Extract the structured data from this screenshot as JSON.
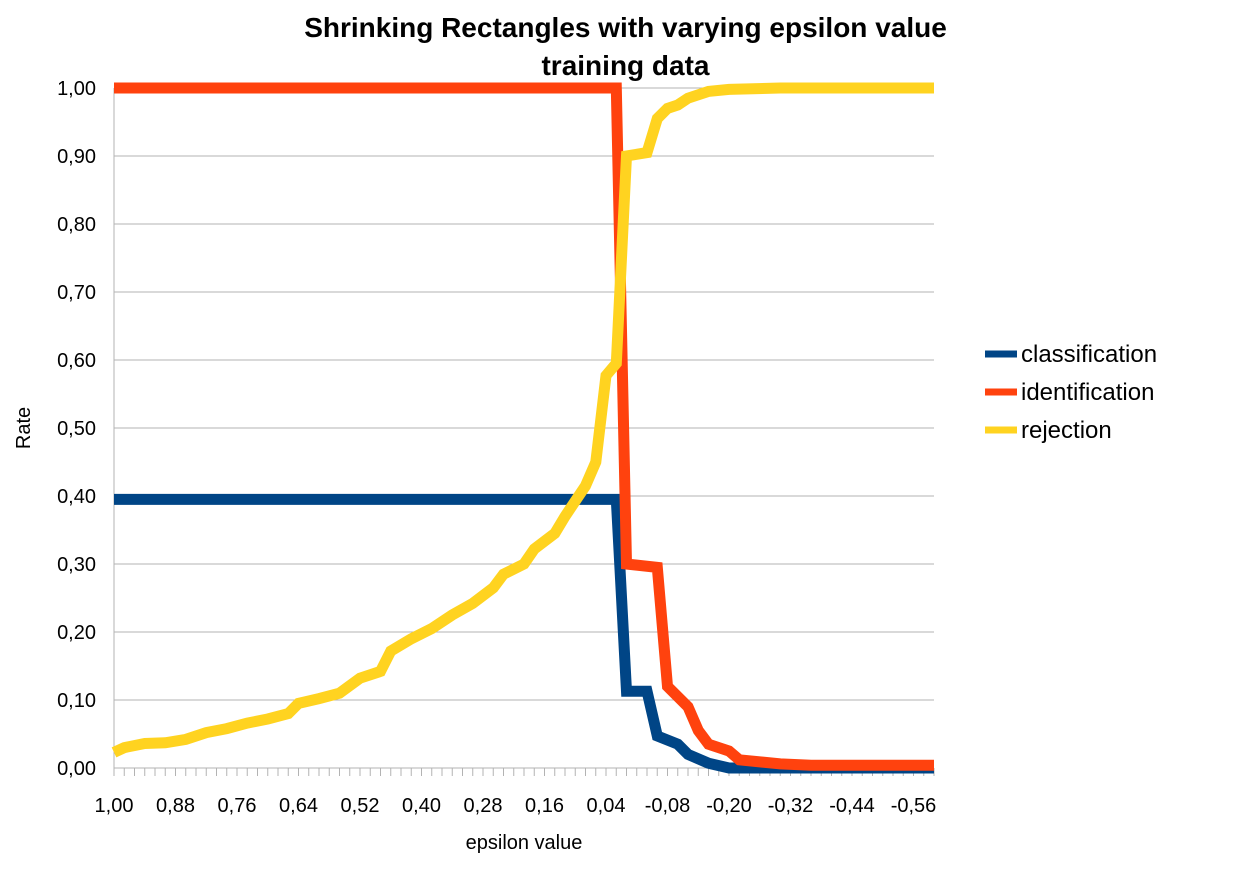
{
  "chart_data": {
    "type": "line",
    "title": "Shrinking Rectangles with varying epsilon value",
    "subtitle": "training data",
    "xlabel": "epsilon value",
    "ylabel": "Rate",
    "xlim": [
      1.0,
      -0.6
    ],
    "ylim": [
      0,
      1
    ],
    "grid": true,
    "legend_position": "right",
    "y_ticks": [
      "0,00",
      "0,10",
      "0,20",
      "0,30",
      "0,40",
      "0,50",
      "0,60",
      "0,70",
      "0,80",
      "0,90",
      "1,00"
    ],
    "x_ticks": [
      "1,00",
      "0,88",
      "0,76",
      "0,64",
      "0,52",
      "0,40",
      "0,28",
      "0,16",
      "0,04",
      "-0,08",
      "-0,20",
      "-0,32",
      "-0,44",
      "-0,56"
    ],
    "series": [
      {
        "name": "classification",
        "color": "#004586",
        "points": [
          [
            1.0,
            0.395
          ],
          [
            0.02,
            0.395
          ],
          [
            0.0,
            0.113
          ],
          [
            -0.04,
            0.113
          ],
          [
            -0.06,
            0.047
          ],
          [
            -0.1,
            0.035
          ],
          [
            -0.12,
            0.02
          ],
          [
            -0.16,
            0.007
          ],
          [
            -0.2,
            0.0
          ],
          [
            -0.6,
            0.0
          ]
        ]
      },
      {
        "name": "identification",
        "color": "#ff420e",
        "points": [
          [
            1.0,
            1.0
          ],
          [
            0.02,
            1.0
          ],
          [
            0.0,
            0.3
          ],
          [
            -0.06,
            0.295
          ],
          [
            -0.08,
            0.12
          ],
          [
            -0.12,
            0.09
          ],
          [
            -0.14,
            0.055
          ],
          [
            -0.16,
            0.035
          ],
          [
            -0.2,
            0.025
          ],
          [
            -0.22,
            0.012
          ],
          [
            -0.3,
            0.006
          ],
          [
            -0.36,
            0.004
          ],
          [
            -0.6,
            0.004
          ]
        ]
      },
      {
        "name": "rejection",
        "color": "#ffd320",
        "points": [
          [
            1.0,
            0.023
          ],
          [
            0.98,
            0.03
          ],
          [
            0.94,
            0.036
          ],
          [
            0.9,
            0.037
          ],
          [
            0.86,
            0.042
          ],
          [
            0.82,
            0.052
          ],
          [
            0.78,
            0.058
          ],
          [
            0.74,
            0.066
          ],
          [
            0.7,
            0.072
          ],
          [
            0.66,
            0.08
          ],
          [
            0.64,
            0.095
          ],
          [
            0.6,
            0.102
          ],
          [
            0.56,
            0.11
          ],
          [
            0.52,
            0.132
          ],
          [
            0.48,
            0.142
          ],
          [
            0.46,
            0.172
          ],
          [
            0.42,
            0.19
          ],
          [
            0.38,
            0.205
          ],
          [
            0.34,
            0.225
          ],
          [
            0.3,
            0.242
          ],
          [
            0.26,
            0.265
          ],
          [
            0.24,
            0.285
          ],
          [
            0.2,
            0.3
          ],
          [
            0.18,
            0.322
          ],
          [
            0.14,
            0.345
          ],
          [
            0.12,
            0.37
          ],
          [
            0.08,
            0.415
          ],
          [
            0.06,
            0.45
          ],
          [
            0.04,
            0.577
          ],
          [
            0.02,
            0.595
          ],
          [
            0.0,
            0.9
          ],
          [
            -0.04,
            0.905
          ],
          [
            -0.06,
            0.955
          ],
          [
            -0.08,
            0.97
          ],
          [
            -0.1,
            0.975
          ],
          [
            -0.12,
            0.985
          ],
          [
            -0.16,
            0.995
          ],
          [
            -0.2,
            0.998
          ],
          [
            -0.3,
            1.0
          ],
          [
            -0.6,
            1.0
          ]
        ]
      }
    ]
  }
}
